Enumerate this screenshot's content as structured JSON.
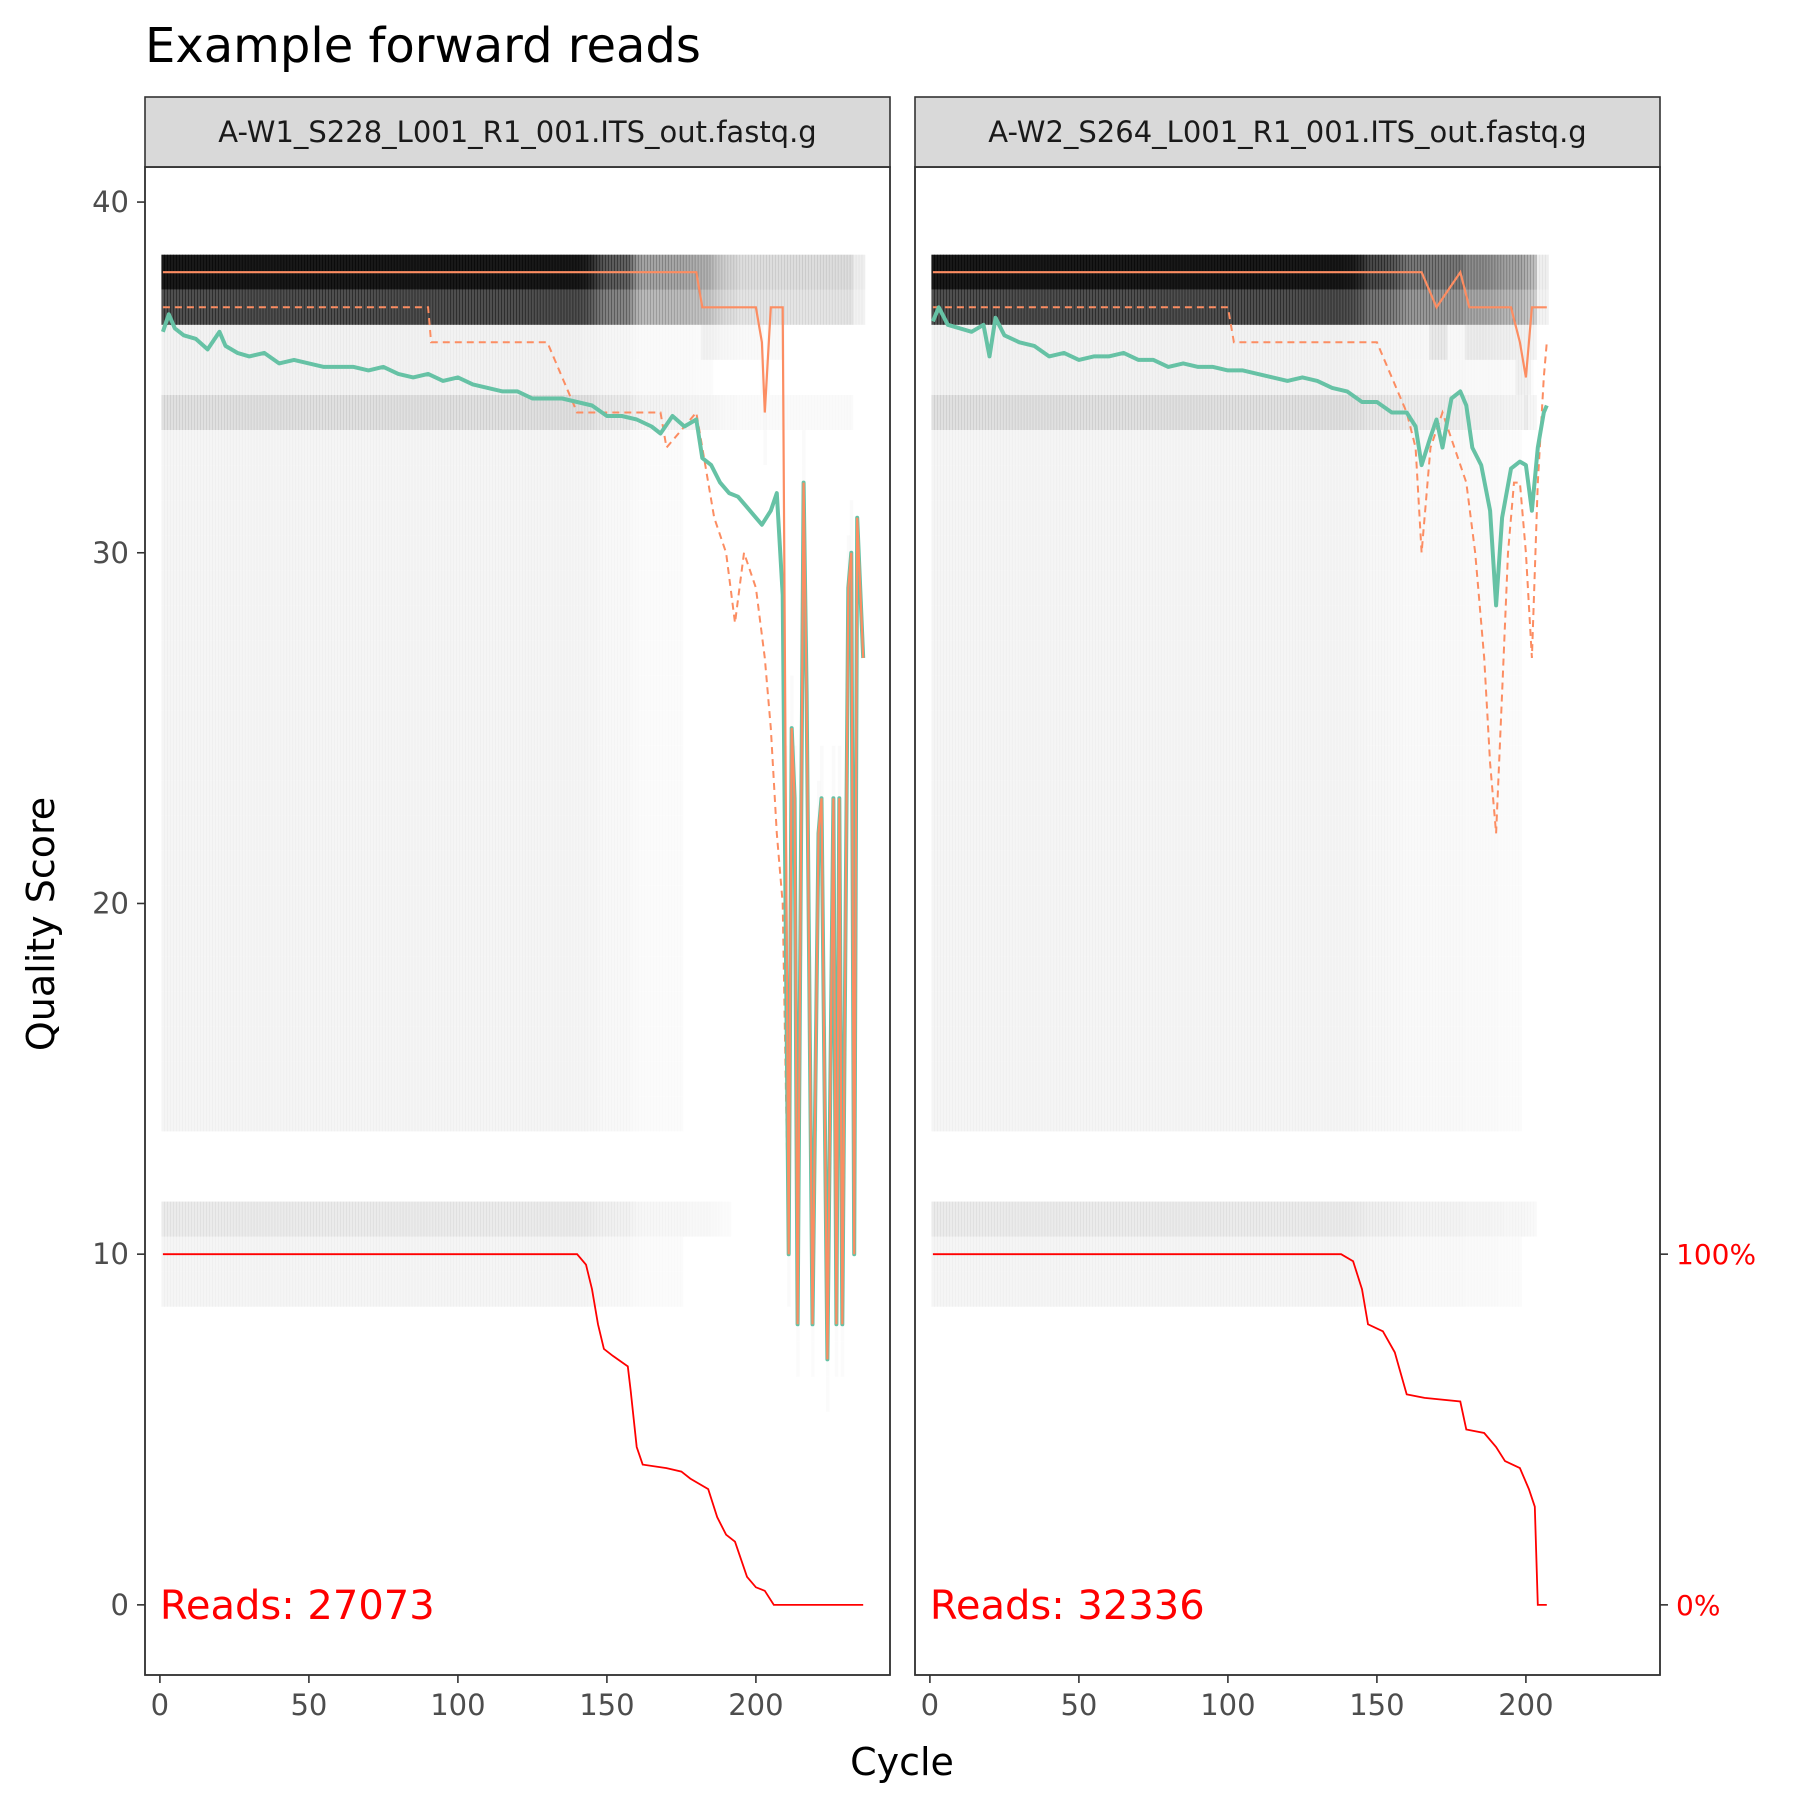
{
  "title": "Example forward reads",
  "chart_data": {
    "type": "line",
    "title": "Example forward reads",
    "xlabel": "Cycle",
    "ylabel": "Quality Score",
    "xlim": [
      -5,
      245
    ],
    "ylim": [
      -2,
      41
    ],
    "x_ticks": [
      0,
      50,
      100,
      150,
      200
    ],
    "y_ticks": [
      0,
      10,
      20,
      30,
      40
    ],
    "secondary_y_ticks": [
      {
        "label": "100%",
        "y": 10
      },
      {
        "label": "0%",
        "y": 0
      }
    ],
    "colors": {
      "mean": "#66c2a5",
      "median": "#fc8d62",
      "quartile": "#fc8d62",
      "cumulative": "#ff0000",
      "heatmap": "#000000"
    },
    "panels": [
      {
        "strip_label": "A-W1_S228_L001_R1_001.ITS_out.fastq.g",
        "reads_label": "Reads:  27073",
        "mean": [
          [
            1,
            36.3
          ],
          [
            3,
            36.8
          ],
          [
            5,
            36.4
          ],
          [
            8,
            36.2
          ],
          [
            12,
            36.1
          ],
          [
            16,
            35.8
          ],
          [
            20,
            36.3
          ],
          [
            22,
            35.9
          ],
          [
            26,
            35.7
          ],
          [
            30,
            35.6
          ],
          [
            35,
            35.7
          ],
          [
            40,
            35.4
          ],
          [
            45,
            35.5
          ],
          [
            50,
            35.4
          ],
          [
            55,
            35.3
          ],
          [
            60,
            35.3
          ],
          [
            65,
            35.3
          ],
          [
            70,
            35.2
          ],
          [
            75,
            35.3
          ],
          [
            80,
            35.1
          ],
          [
            85,
            35.0
          ],
          [
            90,
            35.1
          ],
          [
            95,
            34.9
          ],
          [
            100,
            35.0
          ],
          [
            105,
            34.8
          ],
          [
            110,
            34.7
          ],
          [
            115,
            34.6
          ],
          [
            120,
            34.6
          ],
          [
            125,
            34.4
          ],
          [
            130,
            34.4
          ],
          [
            135,
            34.4
          ],
          [
            140,
            34.3
          ],
          [
            145,
            34.2
          ],
          [
            150,
            33.9
          ],
          [
            155,
            33.9
          ],
          [
            160,
            33.8
          ],
          [
            165,
            33.6
          ],
          [
            168,
            33.4
          ],
          [
            172,
            33.9
          ],
          [
            176,
            33.6
          ],
          [
            180,
            33.8
          ],
          [
            182,
            32.7
          ],
          [
            185,
            32.5
          ],
          [
            188,
            32.0
          ],
          [
            191,
            31.7
          ],
          [
            194,
            31.6
          ],
          [
            197,
            31.3
          ],
          [
            200,
            31.0
          ],
          [
            202,
            30.8
          ],
          [
            205,
            31.2
          ],
          [
            207,
            31.7
          ],
          [
            209,
            28.8
          ],
          [
            211,
            10.0
          ],
          [
            212,
            25.0
          ],
          [
            213,
            23.0
          ],
          [
            214,
            8.0
          ],
          [
            216,
            32.0
          ],
          [
            217,
            26.0
          ],
          [
            219,
            8.0
          ],
          [
            221,
            22.0
          ],
          [
            222,
            23.0
          ],
          [
            224,
            7.0
          ],
          [
            226,
            23.0
          ],
          [
            227,
            8.0
          ],
          [
            228,
            23.0
          ],
          [
            229,
            8.0
          ],
          [
            231,
            29.0
          ],
          [
            232,
            30.0
          ],
          [
            233,
            10.0
          ],
          [
            234,
            31.0
          ],
          [
            236,
            27.0
          ]
        ],
        "median": [
          [
            1,
            38
          ],
          [
            180,
            38
          ],
          [
            182,
            37
          ],
          [
            200,
            37
          ],
          [
            202,
            36
          ],
          [
            203,
            34
          ],
          [
            205,
            37
          ],
          [
            209,
            37
          ],
          [
            211,
            10
          ],
          [
            212,
            25
          ],
          [
            213,
            23
          ],
          [
            214,
            8
          ],
          [
            216,
            32
          ],
          [
            217,
            26
          ],
          [
            219,
            8
          ],
          [
            221,
            22
          ],
          [
            222,
            23
          ],
          [
            224,
            7
          ],
          [
            226,
            23
          ],
          [
            227,
            8
          ],
          [
            228,
            23
          ],
          [
            229,
            8
          ],
          [
            231,
            29
          ],
          [
            232,
            30
          ],
          [
            233,
            10
          ],
          [
            234,
            31
          ],
          [
            236,
            27
          ]
        ],
        "q1": [
          [
            1,
            37
          ],
          [
            90,
            37
          ],
          [
            91,
            36
          ],
          [
            130,
            36
          ],
          [
            140,
            34
          ],
          [
            165,
            34
          ],
          [
            168,
            34
          ],
          [
            170,
            33
          ],
          [
            180,
            34
          ],
          [
            182,
            33
          ],
          [
            186,
            31
          ],
          [
            190,
            30
          ],
          [
            193,
            28
          ],
          [
            196,
            30
          ],
          [
            200,
            29
          ],
          [
            203,
            27
          ],
          [
            205,
            25
          ],
          [
            207,
            22
          ],
          [
            209,
            20
          ],
          [
            211,
            10
          ],
          [
            212,
            25
          ],
          [
            213,
            23
          ],
          [
            214,
            8
          ],
          [
            216,
            32
          ],
          [
            217,
            26
          ],
          [
            219,
            8
          ],
          [
            221,
            22
          ],
          [
            222,
            23
          ],
          [
            224,
            7
          ],
          [
            226,
            23
          ],
          [
            227,
            8
          ],
          [
            228,
            23
          ],
          [
            229,
            8
          ],
          [
            231,
            29
          ],
          [
            232,
            30
          ],
          [
            233,
            10
          ],
          [
            234,
            31
          ],
          [
            236,
            27
          ]
        ],
        "cumulative": [
          [
            1,
            100
          ],
          [
            140,
            100
          ],
          [
            143,
            97
          ],
          [
            145,
            90
          ],
          [
            147,
            80
          ],
          [
            149,
            73
          ],
          [
            152,
            71
          ],
          [
            157,
            68
          ],
          [
            158,
            61
          ],
          [
            160,
            45
          ],
          [
            162,
            40
          ],
          [
            170,
            39
          ],
          [
            175,
            38
          ],
          [
            178,
            36
          ],
          [
            184,
            33
          ],
          [
            187,
            25
          ],
          [
            190,
            20
          ],
          [
            193,
            18
          ],
          [
            197,
            8
          ],
          [
            200,
            5
          ],
          [
            203,
            4
          ],
          [
            206,
            0
          ],
          [
            236,
            0
          ]
        ]
      },
      {
        "strip_label": "A-W2_S264_L001_R1_001.ITS_out.fastq.g",
        "reads_label": "Reads:  32336",
        "mean": [
          [
            1,
            36.6
          ],
          [
            3,
            37.0
          ],
          [
            6,
            36.5
          ],
          [
            10,
            36.4
          ],
          [
            14,
            36.3
          ],
          [
            18,
            36.5
          ],
          [
            20,
            35.6
          ],
          [
            22,
            36.7
          ],
          [
            25,
            36.2
          ],
          [
            30,
            36.0
          ],
          [
            35,
            35.9
          ],
          [
            40,
            35.6
          ],
          [
            45,
            35.7
          ],
          [
            50,
            35.5
          ],
          [
            55,
            35.6
          ],
          [
            60,
            35.6
          ],
          [
            65,
            35.7
          ],
          [
            70,
            35.5
          ],
          [
            75,
            35.5
          ],
          [
            80,
            35.3
          ],
          [
            85,
            35.4
          ],
          [
            90,
            35.3
          ],
          [
            95,
            35.3
          ],
          [
            100,
            35.2
          ],
          [
            105,
            35.2
          ],
          [
            110,
            35.1
          ],
          [
            115,
            35.0
          ],
          [
            120,
            34.9
          ],
          [
            125,
            35.0
          ],
          [
            130,
            34.9
          ],
          [
            135,
            34.7
          ],
          [
            140,
            34.6
          ],
          [
            145,
            34.3
          ],
          [
            150,
            34.3
          ],
          [
            155,
            34.0
          ],
          [
            160,
            34.0
          ],
          [
            163,
            33.6
          ],
          [
            165,
            32.5
          ],
          [
            168,
            33.3
          ],
          [
            170,
            33.8
          ],
          [
            172,
            33.0
          ],
          [
            175,
            34.4
          ],
          [
            178,
            34.6
          ],
          [
            180,
            34.2
          ],
          [
            182,
            33.0
          ],
          [
            185,
            32.5
          ],
          [
            188,
            31.2
          ],
          [
            190,
            28.5
          ],
          [
            192,
            31.0
          ],
          [
            195,
            32.4
          ],
          [
            198,
            32.6
          ],
          [
            200,
            32.5
          ],
          [
            202,
            31.2
          ],
          [
            204,
            33.0
          ],
          [
            206,
            34.0
          ],
          [
            207,
            34.2
          ]
        ],
        "median": [
          [
            1,
            38
          ],
          [
            165,
            38
          ],
          [
            170,
            37
          ],
          [
            178,
            38
          ],
          [
            181,
            37
          ],
          [
            195,
            37
          ],
          [
            198,
            36
          ],
          [
            200,
            35
          ],
          [
            202,
            37
          ],
          [
            207,
            37
          ]
        ],
        "q1": [
          [
            1,
            37
          ],
          [
            100,
            37
          ],
          [
            102,
            36
          ],
          [
            150,
            36
          ],
          [
            155,
            35
          ],
          [
            160,
            34
          ],
          [
            163,
            33
          ],
          [
            165,
            30
          ],
          [
            168,
            33
          ],
          [
            172,
            34
          ],
          [
            176,
            33
          ],
          [
            180,
            32
          ],
          [
            183,
            30
          ],
          [
            186,
            27
          ],
          [
            188,
            24
          ],
          [
            190,
            22
          ],
          [
            192,
            26
          ],
          [
            194,
            30
          ],
          [
            196,
            32
          ],
          [
            198,
            32
          ],
          [
            200,
            30
          ],
          [
            202,
            27
          ],
          [
            204,
            32
          ],
          [
            206,
            35
          ],
          [
            207,
            36
          ]
        ],
        "cumulative": [
          [
            1,
            100
          ],
          [
            138,
            100
          ],
          [
            142,
            98
          ],
          [
            145,
            90
          ],
          [
            147,
            80
          ],
          [
            152,
            78
          ],
          [
            156,
            72
          ],
          [
            160,
            60
          ],
          [
            166,
            59
          ],
          [
            178,
            58
          ],
          [
            180,
            50
          ],
          [
            186,
            49
          ],
          [
            190,
            45
          ],
          [
            193,
            41
          ],
          [
            198,
            39
          ],
          [
            201,
            33
          ],
          [
            203,
            28
          ],
          [
            204,
            0
          ],
          [
            207,
            0
          ]
        ]
      }
    ]
  }
}
